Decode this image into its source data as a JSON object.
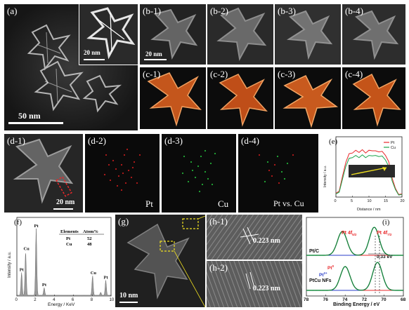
{
  "panels": {
    "a": {
      "label": "(a)",
      "scale_main": "50 nm",
      "scale_inset": "20 nm"
    },
    "b": [
      {
        "label": "(b-1)",
        "scale": "20 nm"
      },
      {
        "label": "(b-2)"
      },
      {
        "label": "(b-3)"
      },
      {
        "label": "(b-4)"
      }
    ],
    "c": [
      {
        "label": "(c-1)"
      },
      {
        "label": "(c-2)"
      },
      {
        "label": "(c-3)"
      },
      {
        "label": "(c-4)"
      }
    ],
    "d": [
      {
        "label": "(d-1)",
        "scale": "20 nm"
      },
      {
        "label": "(d-2)",
        "element": "Pt"
      },
      {
        "label": "(d-3)",
        "element": "Cu"
      },
      {
        "label": "(d-4)",
        "element": "Pt vs. Cu"
      }
    ],
    "e": {
      "label": "(e)"
    },
    "f": {
      "label": "(f)"
    },
    "g": {
      "label": "(g)",
      "scale": "10 nm"
    },
    "h": [
      {
        "label": "(h-1)",
        "spacing": "0.223 nm"
      },
      {
        "label": "(h-2)",
        "spacing": "0.223 nm"
      }
    ],
    "i": {
      "label": "(i)"
    }
  },
  "chart_data": [
    {
      "type": "line",
      "panel": "e",
      "xlabel": "Distance / nm",
      "ylabel": "Intensity / a.u.",
      "xlim": [
        0,
        20
      ],
      "xticks": [
        "0",
        "5",
        "10",
        "15",
        "20"
      ],
      "series": [
        {
          "name": "Pt",
          "color": "#e8272a",
          "x": [
            0,
            1,
            2,
            3,
            4,
            5,
            6,
            7,
            8,
            9,
            10,
            11,
            12,
            13,
            14,
            15,
            16,
            17,
            18,
            19,
            20
          ],
          "values": [
            0.05,
            0.12,
            0.35,
            0.62,
            0.74,
            0.78,
            0.8,
            0.79,
            0.81,
            0.78,
            0.8,
            0.82,
            0.79,
            0.8,
            0.78,
            0.74,
            0.6,
            0.35,
            0.14,
            0.06,
            0.04
          ]
        },
        {
          "name": "Cu",
          "color": "#1aa34a",
          "x": [
            0,
            1,
            2,
            3,
            4,
            5,
            6,
            7,
            8,
            9,
            10,
            11,
            12,
            13,
            14,
            15,
            16,
            17,
            18,
            19,
            20
          ],
          "values": [
            0.04,
            0.1,
            0.3,
            0.55,
            0.66,
            0.7,
            0.71,
            0.7,
            0.72,
            0.7,
            0.71,
            0.73,
            0.71,
            0.72,
            0.7,
            0.66,
            0.52,
            0.3,
            0.12,
            0.05,
            0.03
          ]
        }
      ]
    },
    {
      "type": "area",
      "panel": "f",
      "xlabel": "Energy / KeV",
      "ylabel": "Intensity / a.u.",
      "xlim": [
        0,
        10
      ],
      "xticks": [
        "0",
        "2",
        "4",
        "6",
        "8",
        "10"
      ],
      "peaks": [
        {
          "label": "Pt",
          "x": 0.5,
          "value": 0.3
        },
        {
          "label": "Pt",
          "x": 2.05,
          "value": 0.88
        },
        {
          "label": "Cu",
          "x": 0.93,
          "value": 0.58
        },
        {
          "label": "Pt",
          "x": 2.9,
          "value": 0.1
        },
        {
          "label": "Cu",
          "x": 8.04,
          "value": 0.26
        },
        {
          "label": "Cu",
          "x": 8.9,
          "value": 0.04
        },
        {
          "label": "Pt",
          "x": 9.44,
          "value": 0.2
        }
      ],
      "table": {
        "headers": [
          "Elements",
          "Atom%"
        ],
        "rows": [
          [
            "Pt",
            "52"
          ],
          [
            "Cu",
            "48"
          ]
        ]
      }
    },
    {
      "type": "line",
      "panel": "i",
      "xlabel": "Binding Energy / eV",
      "xlim": [
        78,
        68
      ],
      "xticks": [
        "78",
        "76",
        "74",
        "72",
        "70",
        "68"
      ],
      "annotations": [
        {
          "text": "Pt/C"
        },
        {
          "text": "PtCu NFs"
        },
        {
          "text": "Pt 4f5/2",
          "main": "Pt 4f",
          "sub": "5/2"
        },
        {
          "text": "Pt 4f7/2",
          "main": "Pt 4f",
          "sub": "7/2"
        },
        {
          "text": "0.33 eV"
        },
        {
          "text": "Pt0",
          "main": "Pt",
          "sup": "0"
        },
        {
          "text": "Pt2+",
          "main": "Pt",
          "sup": "2+"
        }
      ],
      "series": [
        {
          "name": "Pt/C",
          "color": "#222222",
          "peaks_x": [
            74.3,
            71.0
          ]
        },
        {
          "name": "PtCu NFs",
          "color": "#222222",
          "peaks_x": [
            74.0,
            70.67
          ]
        }
      ]
    }
  ]
}
